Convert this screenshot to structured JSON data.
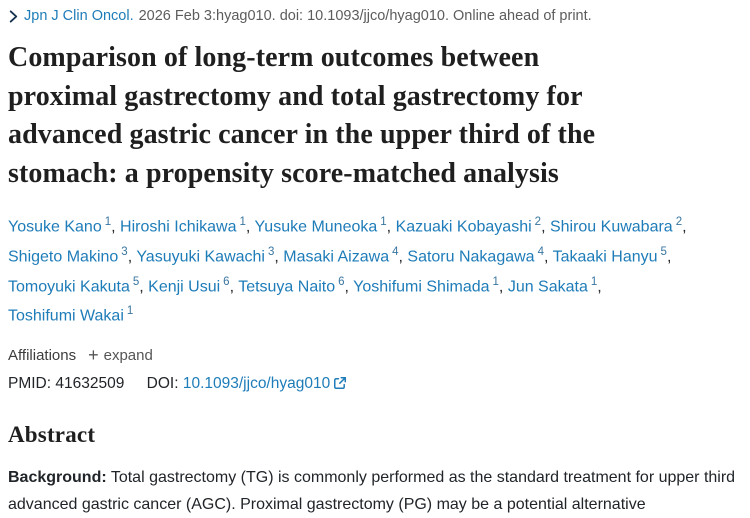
{
  "citation": {
    "journal": "Jpn J Clin Oncol.",
    "details": "2026 Feb 3:hyag010. doi: 10.1093/jjco/hyag010. Online ahead of print."
  },
  "title_lines": [
    "Comparison of long-term outcomes between",
    "proximal gastrectomy and total gastrectomy for",
    "advanced gastric cancer in the upper third of the",
    "stomach: a propensity score-matched analysis"
  ],
  "authors": [
    {
      "name": "Yosuke Kano",
      "sup": "1"
    },
    {
      "name": "Hiroshi Ichikawa",
      "sup": "1"
    },
    {
      "name": "Yusuke Muneoka",
      "sup": "1"
    },
    {
      "name": "Kazuaki Kobayashi",
      "sup": "2"
    },
    {
      "name": "Shirou Kuwabara",
      "sup": "2"
    },
    {
      "name": "Shigeto Makino",
      "sup": "3"
    },
    {
      "name": "Yasuyuki Kawachi",
      "sup": "3"
    },
    {
      "name": "Masaki Aizawa",
      "sup": "4"
    },
    {
      "name": "Satoru Nakagawa",
      "sup": "4"
    },
    {
      "name": "Takaaki Hanyu",
      "sup": "5"
    },
    {
      "name": "Tomoyuki Kakuta",
      "sup": "5"
    },
    {
      "name": "Kenji Usui",
      "sup": "6"
    },
    {
      "name": "Tetsuya Naito",
      "sup": "6"
    },
    {
      "name": "Yoshifumi Shimada",
      "sup": "1"
    },
    {
      "name": "Jun Sakata",
      "sup": "1"
    },
    {
      "name": "Toshifumi Wakai",
      "sup": "1"
    }
  ],
  "affiliations": {
    "label": "Affiliations",
    "expand_label": "expand",
    "plus": "+"
  },
  "identifiers": {
    "pmid_label": "PMID:",
    "pmid": "41632509",
    "doi_label": "DOI:",
    "doi_link": "10.1093/jjco/hyag010"
  },
  "abstract": {
    "heading": "Abstract",
    "background_label": "Background:",
    "background_text": "Total gastrectomy (TG) is commonly performed as the standard treatment for upper third advanced gastric cancer (AGC). Proximal gastrectomy (PG) may be a potential alternative"
  },
  "icons": {
    "chevron": "chevron-right-icon",
    "external_link": "external-link-icon",
    "plus": "plus-icon"
  },
  "colors": {
    "link_blue": "#1e7cb8",
    "superscript_blue": "#38759f",
    "text_dark": "#212529",
    "title_dark": "#1f1f1f",
    "text_gray": "#5c5c5c",
    "background": "#ffffff"
  }
}
